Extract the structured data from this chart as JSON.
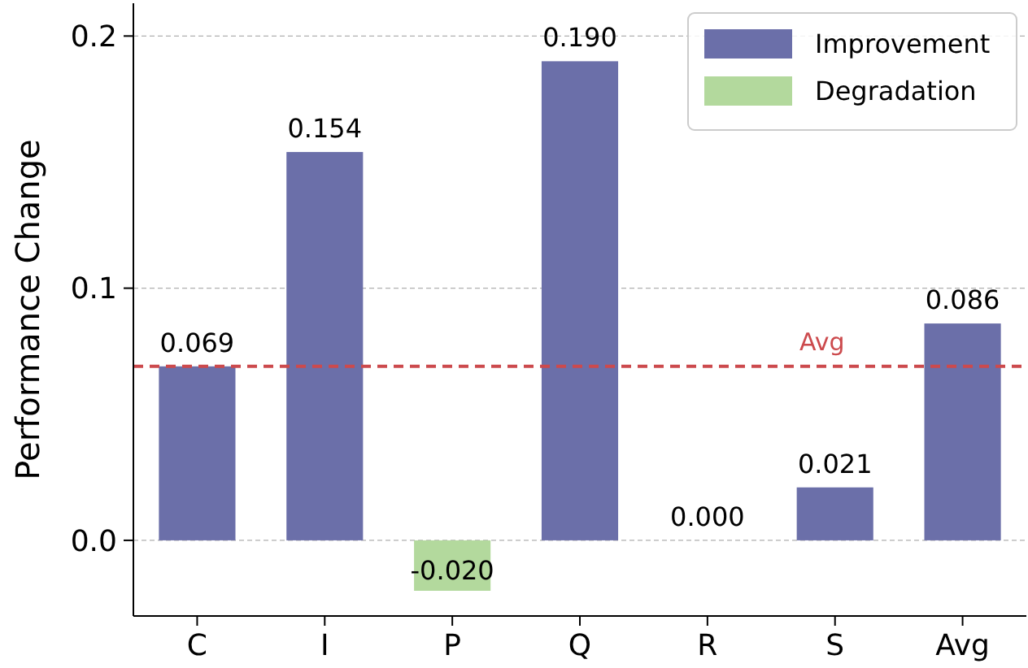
{
  "chart_data": {
    "type": "bar",
    "ylabel": "Performance Change",
    "categories": [
      "C",
      "I",
      "P",
      "Q",
      "R",
      "S",
      "Avg"
    ],
    "series": [
      {
        "name": "Improvement",
        "color": "#6b6fa9",
        "values": [
          0.069,
          0.154,
          null,
          0.19,
          0.0,
          0.021,
          0.086
        ],
        "value_labels": [
          "0.069",
          "0.154",
          null,
          "0.190",
          "0.000",
          "0.021",
          "0.086"
        ]
      },
      {
        "name": "Degradation",
        "color": "#b3d99d",
        "values": [
          null,
          null,
          -0.02,
          null,
          null,
          null,
          null
        ],
        "value_labels": [
          null,
          null,
          "-0.020",
          null,
          null,
          null,
          null
        ]
      }
    ],
    "ylim": [
      -0.03,
      0.213
    ],
    "yticks": [
      {
        "value": 0,
        "label": "0.0"
      },
      {
        "value": 0.1,
        "label": "0.1"
      },
      {
        "value": 0.2,
        "label": "0.2"
      }
    ],
    "grid": "y",
    "legend": "top right",
    "ref_lines": [
      {
        "axis": "y",
        "value": 0.069,
        "label": "Avg",
        "color": "#cc4a4d",
        "line_style": "dashed"
      }
    ]
  }
}
